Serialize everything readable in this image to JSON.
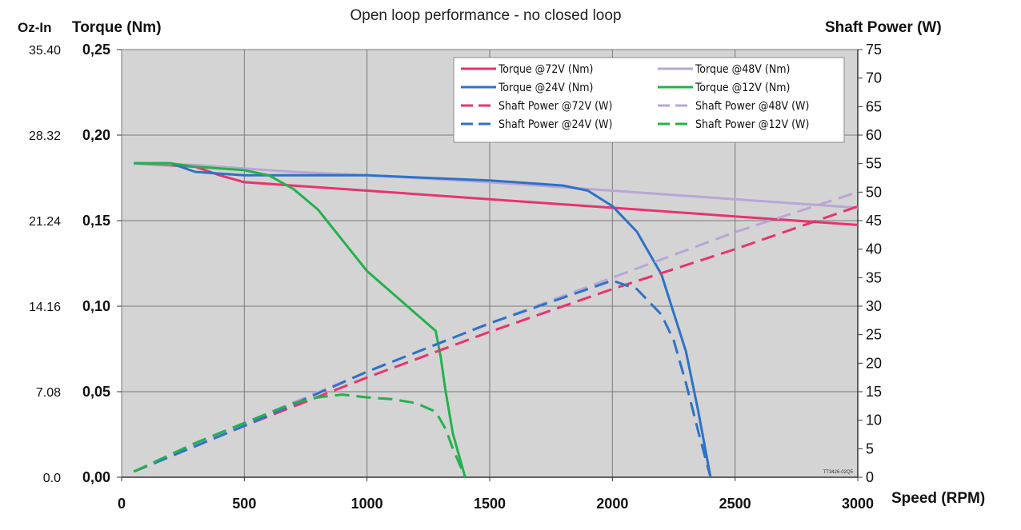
{
  "chart_data": {
    "type": "line",
    "title": "Open loop performance - no closed loop",
    "xlabel": "Speed (RPM)",
    "ylabel_left": "Torque (Nm)",
    "ylabel_left_outer": "Oz-In",
    "ylabel_right": "Shaft Power (W)",
    "xlim": [
      0,
      3000
    ],
    "ylim_left": [
      0,
      0.25
    ],
    "ylim_right": [
      0,
      75
    ],
    "grid": true,
    "background": "#d4d4d4",
    "legend_position": "top-right",
    "watermark_code": "TT3426-02Q5",
    "x_ticks": [
      "0",
      "500",
      "1000",
      "1500",
      "2000",
      "2500",
      "3000"
    ],
    "y_left_ticks": [
      "0,00",
      "0,05",
      "0,10",
      "0,15",
      "0,20",
      "0,25"
    ],
    "y_ozin_ticks": [
      "0.0",
      "7.08",
      "14.16",
      "21.24",
      "28.32",
      "35.40"
    ],
    "y_right_ticks": [
      "0",
      "5",
      "10",
      "15",
      "20",
      "25",
      "30",
      "35",
      "40",
      "45",
      "50",
      "55",
      "60",
      "65",
      "70",
      "75"
    ],
    "series": [
      {
        "name": "Torque @72V (Nm)",
        "axis": "left",
        "style": "solid",
        "color": "#e8336e",
        "x": [
          50,
          300,
          400,
          500,
          1000,
          1500,
          2000,
          2500,
          3000
        ],
        "y": [
          0.1835,
          0.1815,
          0.1765,
          0.1725,
          0.1675,
          0.1625,
          0.1575,
          0.1525,
          0.1475
        ]
      },
      {
        "name": "Torque @48V (Nm)",
        "axis": "left",
        "style": "solid",
        "color": "#b9a6d6",
        "x": [
          50,
          300,
          500,
          700,
          1000,
          1500,
          2000,
          2500,
          3000
        ],
        "y": [
          0.1835,
          0.1825,
          0.1805,
          0.1785,
          0.1765,
          0.1725,
          0.1675,
          0.1625,
          0.1575
        ]
      },
      {
        "name": "Torque @24V (Nm)",
        "axis": "left",
        "style": "solid",
        "color": "#2e72c6",
        "x": [
          50,
          200,
          300,
          500,
          1000,
          1500,
          1800,
          1900,
          2000,
          2100,
          2200,
          2300,
          2350,
          2400
        ],
        "y": [
          0.1835,
          0.1835,
          0.1785,
          0.1765,
          0.1765,
          0.1735,
          0.1705,
          0.1675,
          0.1585,
          0.1435,
          0.1185,
          0.0735,
          0.0385,
          0.0
        ]
      },
      {
        "name": "Torque @12V (Nm)",
        "axis": "left",
        "style": "solid",
        "color": "#23b14d",
        "x": [
          50,
          100,
          150,
          200,
          300,
          500,
          600,
          700,
          800,
          1000,
          1200,
          1280,
          1300,
          1320,
          1350,
          1400
        ],
        "y": [
          0.1835,
          0.1835,
          0.1835,
          0.1835,
          0.1815,
          0.1795,
          0.1765,
          0.1685,
          0.1565,
          0.1205,
          0.0955,
          0.0855,
          0.0705,
          0.0505,
          0.0255,
          0.0
        ]
      },
      {
        "name": "Shaft Power @72V (W)",
        "axis": "right",
        "style": "dashed",
        "color": "#e8336e",
        "x": [
          50,
          500,
          1000,
          1500,
          2000,
          2500,
          3000
        ],
        "y": [
          1.0,
          9.0,
          17.5,
          25.5,
          33.0,
          40.0,
          47.5
        ]
      },
      {
        "name": "Shaft Power @48V (W)",
        "axis": "right",
        "style": "dashed",
        "color": "#b9a6d6",
        "x": [
          50,
          500,
          1000,
          1500,
          2000,
          2500,
          3000
        ],
        "y": [
          1.0,
          9.5,
          18.5,
          27.0,
          35.0,
          43.0,
          50.0
        ]
      },
      {
        "name": "Shaft Power @24V (W)",
        "axis": "right",
        "style": "dashed",
        "color": "#2e72c6",
        "x": [
          50,
          500,
          1000,
          1500,
          1900,
          2000,
          2100,
          2200,
          2250,
          2300,
          2350,
          2400
        ],
        "y": [
          1.0,
          9.0,
          18.5,
          27.0,
          33.0,
          34.5,
          33.0,
          28.5,
          24.0,
          16.5,
          8.0,
          0.0
        ]
      },
      {
        "name": "Shaft Power @12V (W)",
        "axis": "right",
        "style": "dashed",
        "color": "#23b14d",
        "x": [
          50,
          300,
          500,
          700,
          800,
          900,
          1000,
          1100,
          1200,
          1280,
          1320,
          1350,
          1400
        ],
        "y": [
          1.0,
          6.0,
          9.5,
          13.0,
          14.0,
          14.5,
          14.0,
          13.7,
          13.0,
          11.5,
          8.5,
          5.0,
          0.0
        ]
      }
    ],
    "legend_order": [
      "Torque @72V (Nm)",
      "Torque @48V (Nm)",
      "Torque @24V (Nm)",
      "Torque @12V (Nm)",
      "Shaft Power @72V (W)",
      "Shaft Power @48V (W)",
      "Shaft Power @24V (W)",
      "Shaft Power @12V (W)"
    ]
  }
}
